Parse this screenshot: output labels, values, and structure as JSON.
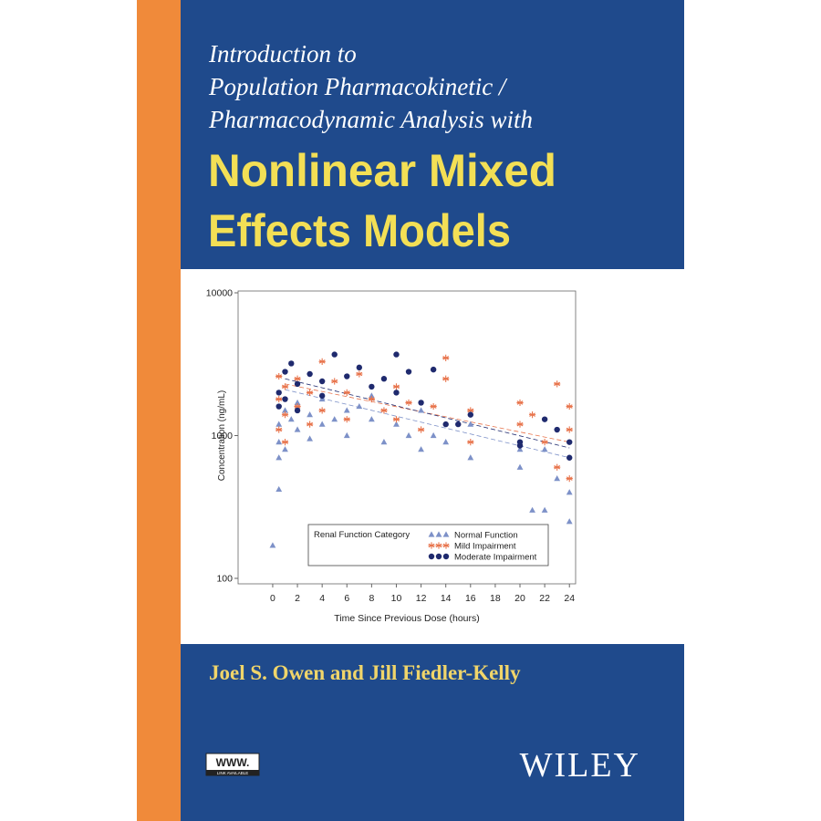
{
  "cover": {
    "subtitle_lines": [
      "Introduction to",
      "Population Pharmacokinetic /",
      "Pharmacodynamic Analysis with"
    ],
    "title_lines": [
      "Nonlinear Mixed",
      "Effects Models"
    ],
    "authors": "Joel S. Owen and Jill Fiedler-Kelly",
    "publisher": "WILEY",
    "badge": {
      "top": "WWW.",
      "bottom": "LINK AVAILABLE"
    }
  },
  "chart_data": {
    "type": "scatter",
    "xlabel": "Time Since Previous Dose (hours)",
    "ylabel": "Concentration (ng/mL)",
    "yscale": "log",
    "xlim": [
      -2.8,
      24.5
    ],
    "ylim": [
      100,
      10000
    ],
    "xticks": [
      0,
      2,
      4,
      6,
      8,
      10,
      12,
      14,
      16,
      18,
      20,
      22,
      24
    ],
    "yticks": [
      100,
      1000,
      10000
    ],
    "legend_title": "Renal Function Category",
    "legend": "lower-center",
    "series": [
      {
        "name": "Normal Function",
        "color": "#7d91c8",
        "marker": "triangle",
        "x": [
          0.5,
          0.5,
          0.5,
          0.5,
          1,
          1,
          1.5,
          2,
          2,
          3,
          3,
          4,
          4,
          5,
          6,
          6,
          7,
          8,
          8,
          9,
          10,
          11,
          12,
          12,
          13,
          14,
          16,
          16,
          20,
          20,
          21,
          22,
          22,
          23,
          24,
          24,
          0
        ],
        "y": [
          900,
          1200,
          700,
          420,
          1500,
          800,
          1300,
          1100,
          1700,
          1400,
          950,
          1200,
          1800,
          1300,
          1000,
          1500,
          1600,
          1300,
          1900,
          900,
          1200,
          1000,
          800,
          1500,
          1000,
          900,
          700,
          1200,
          800,
          600,
          300,
          300,
          800,
          500,
          400,
          250,
          170
        ]
      },
      {
        "name": "Mild Impairment",
        "color": "#e8744c",
        "marker": "asterisk",
        "x": [
          0.5,
          0.5,
          0.5,
          1,
          1,
          1,
          2,
          2,
          3,
          3,
          4,
          4,
          5,
          6,
          6,
          7,
          8,
          9,
          10,
          10,
          11,
          12,
          13,
          14,
          14,
          16,
          16,
          20,
          20,
          21,
          22,
          23,
          23,
          24,
          24,
          24
        ],
        "y": [
          1800,
          2600,
          1100,
          2200,
          1400,
          900,
          2500,
          1600,
          2000,
          1200,
          3300,
          1500,
          2400,
          2000,
          1300,
          2700,
          1800,
          1500,
          2200,
          1300,
          1700,
          1100,
          1600,
          3500,
          2500,
          900,
          1500,
          1700,
          1200,
          1400,
          900,
          2300,
          600,
          1600,
          500,
          1100
        ]
      },
      {
        "name": "Moderate Impairment",
        "color": "#1f2a6e",
        "marker": "circle",
        "x": [
          0.5,
          0.5,
          1,
          1,
          1.5,
          2,
          2,
          3,
          4,
          4,
          5,
          6,
          7,
          8,
          9,
          10,
          10,
          11,
          12,
          13,
          14,
          15,
          16,
          20,
          20,
          22,
          23,
          24,
          24
        ],
        "y": [
          2000,
          1600,
          2800,
          1800,
          3200,
          2300,
          1500,
          2700,
          2400,
          1900,
          3700,
          2600,
          3000,
          2200,
          2500,
          3700,
          2000,
          2800,
          1700,
          2900,
          1200,
          1200,
          1400,
          900,
          850,
          1300,
          1100,
          900,
          700
        ]
      }
    ],
    "trend_lines": [
      {
        "color": "#7d91c8",
        "x": [
          1,
          24
        ],
        "y": [
          2100,
          700
        ]
      },
      {
        "color": "#e8744c",
        "x": [
          1,
          24
        ],
        "y": [
          2300,
          900
        ]
      },
      {
        "color": "#1f2a6e",
        "x": [
          1,
          24
        ],
        "y": [
          2500,
          820
        ]
      }
    ]
  }
}
